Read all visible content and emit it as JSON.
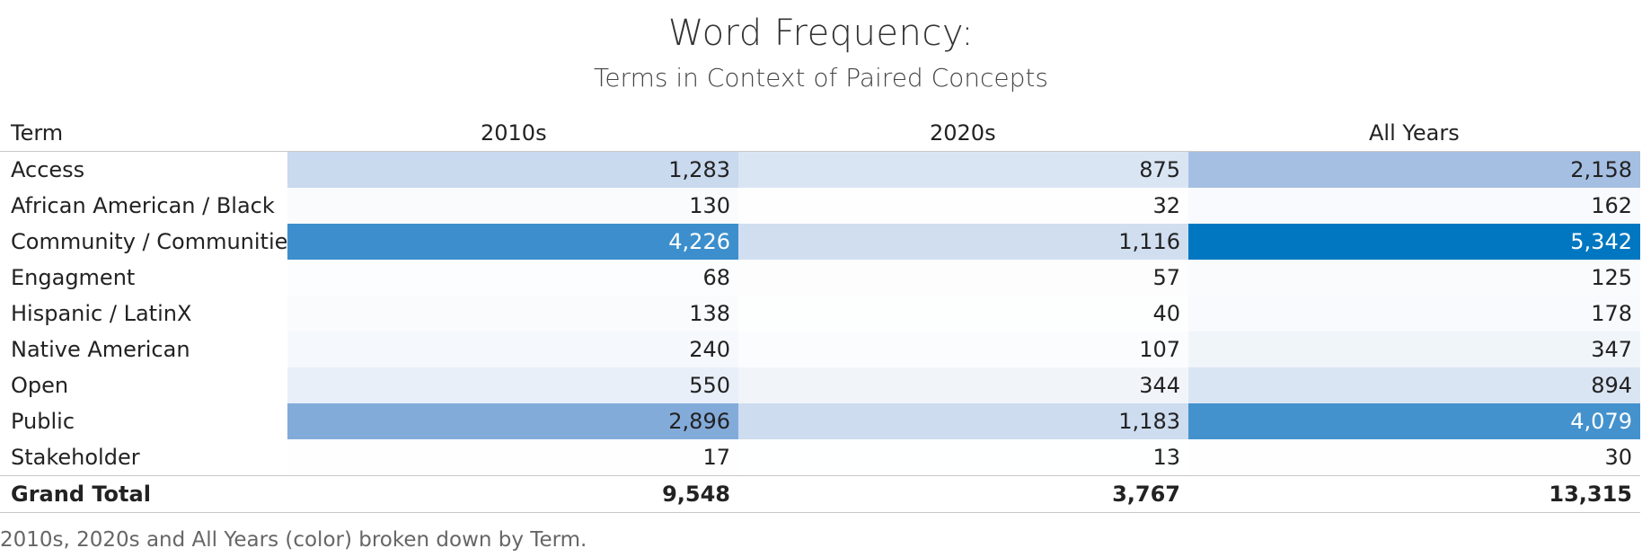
{
  "title": "Word Frequency:",
  "subtitle": "Terms in Context of Paired Concepts",
  "caption": "2010s, 2020s and All Years (color) broken down by Term.",
  "colors": {
    "low": "#ffffff",
    "high": "#0077c0",
    "text_dark": "#222222",
    "text_light": "#ffffff"
  },
  "chart_data": {
    "type": "table",
    "row_header": "Term",
    "columns": [
      "2010s",
      "2020s",
      "All Years"
    ],
    "rows": [
      {
        "term": "Access",
        "values": [
          1283,
          875,
          2158
        ],
        "display": [
          "1,283",
          "875",
          "2,158"
        ]
      },
      {
        "term": "African American / Black",
        "values": [
          130,
          32,
          162
        ],
        "display": [
          "130",
          "32",
          "162"
        ]
      },
      {
        "term": "Community / Communities",
        "values": [
          4226,
          1116,
          5342
        ],
        "display": [
          "4,226",
          "1,116",
          "5,342"
        ]
      },
      {
        "term": "Engagment",
        "values": [
          68,
          57,
          125
        ],
        "display": [
          "68",
          "57",
          "125"
        ]
      },
      {
        "term": "Hispanic / LatinX",
        "values": [
          138,
          40,
          178
        ],
        "display": [
          "138",
          "40",
          "178"
        ]
      },
      {
        "term": "Native American",
        "values": [
          240,
          107,
          347
        ],
        "display": [
          "240",
          "107",
          "347"
        ]
      },
      {
        "term": "Open",
        "values": [
          550,
          344,
          894
        ],
        "display": [
          "550",
          "344",
          "894"
        ]
      },
      {
        "term": "Public",
        "values": [
          2896,
          1183,
          4079
        ],
        "display": [
          "2,896",
          "1,183",
          "4,079"
        ]
      },
      {
        "term": "Stakeholder",
        "values": [
          17,
          13,
          30
        ],
        "display": [
          "17",
          "13",
          "30"
        ]
      }
    ],
    "total": {
      "term": "Grand Total",
      "values": [
        9548,
        3767,
        13315
      ],
      "display": [
        "9,548",
        "3,767",
        "13,315"
      ]
    },
    "color_scale": {
      "min": 0,
      "max": 5342
    }
  }
}
